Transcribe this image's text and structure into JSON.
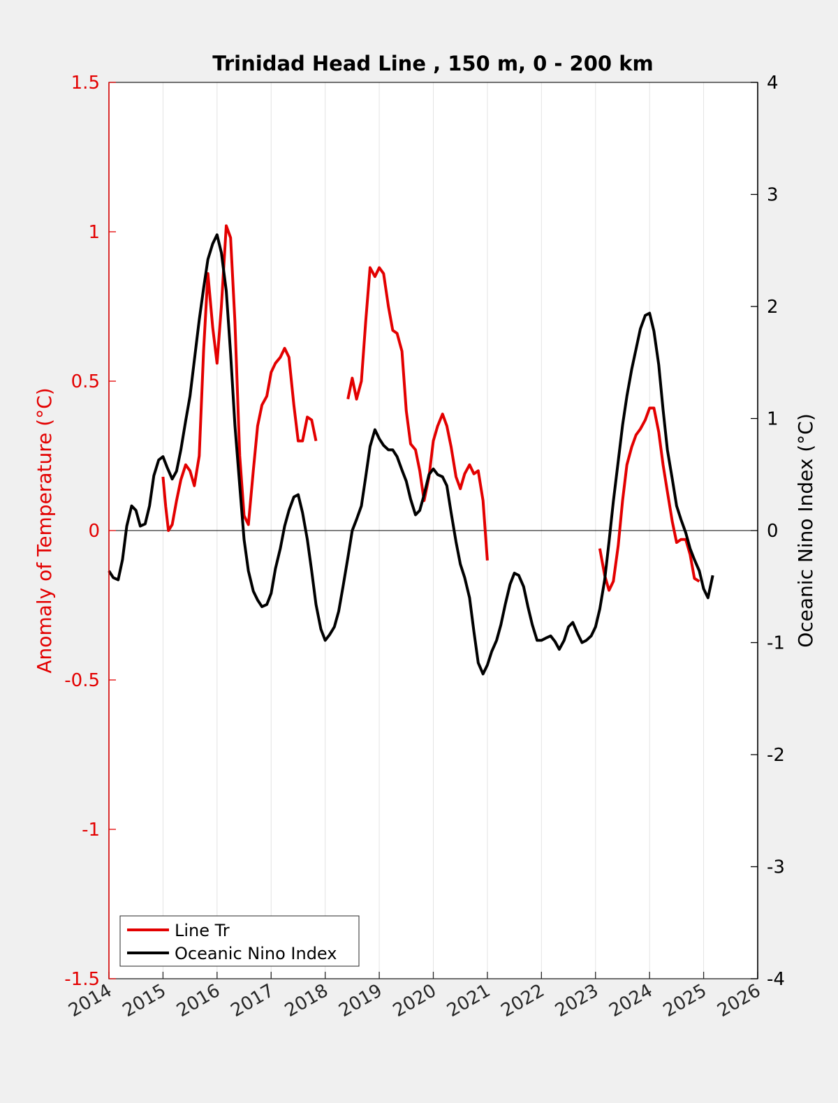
{
  "chart_data": {
    "type": "line",
    "title": "Trinidad Head Line , 150 m, 0 - 200 km",
    "xlabel": "",
    "ylabel_left": "Anomaly of Temperature (°C)",
    "ylabel_right": "Oceanic Nino Index (°C)",
    "xlim": [
      2014,
      2026
    ],
    "ylim_left": [
      -1.5,
      1.5
    ],
    "ylim_right": [
      -4,
      4
    ],
    "x_ticks": [
      "2014",
      "2015",
      "2016",
      "2017",
      "2018",
      "2019",
      "2020",
      "2021",
      "2022",
      "2023",
      "2024",
      "2025",
      "2026"
    ],
    "y_ticks_left": [
      "-1.5",
      "-1",
      "-0.5",
      "0",
      "0.5",
      "1",
      "1.5"
    ],
    "y_ticks_right": [
      "-4",
      "-3",
      "-2",
      "-1",
      "0",
      "1",
      "2",
      "3",
      "4"
    ],
    "grid": "vertical",
    "zero_line": true,
    "legend_position": "bottom-left",
    "colors": {
      "line_tr": "#e30000",
      "oni": "#000000",
      "left_axis": "#e30000",
      "right_axis": "#000000"
    },
    "series": [
      {
        "name": "Line Tr",
        "axis": "left",
        "segments": [
          [
            [
              2015.0,
              0.18
            ],
            [
              2015.05,
              0.08
            ],
            [
              2015.1,
              0.0
            ],
            [
              2015.17,
              0.02
            ],
            [
              2015.25,
              0.1
            ],
            [
              2015.33,
              0.17
            ],
            [
              2015.42,
              0.22
            ],
            [
              2015.5,
              0.2
            ],
            [
              2015.58,
              0.15
            ],
            [
              2015.67,
              0.25
            ],
            [
              2015.75,
              0.6
            ],
            [
              2015.83,
              0.86
            ],
            [
              2015.92,
              0.68
            ],
            [
              2016.0,
              0.56
            ],
            [
              2016.08,
              0.75
            ],
            [
              2016.17,
              1.02
            ],
            [
              2016.25,
              0.98
            ],
            [
              2016.33,
              0.7
            ],
            [
              2016.42,
              0.25
            ],
            [
              2016.5,
              0.05
            ],
            [
              2016.58,
              0.02
            ],
            [
              2016.67,
              0.2
            ],
            [
              2016.75,
              0.35
            ],
            [
              2016.83,
              0.42
            ],
            [
              2016.92,
              0.45
            ],
            [
              2017.0,
              0.53
            ],
            [
              2017.08,
              0.56
            ],
            [
              2017.17,
              0.58
            ],
            [
              2017.25,
              0.61
            ],
            [
              2017.33,
              0.58
            ],
            [
              2017.42,
              0.42
            ],
            [
              2017.5,
              0.3
            ],
            [
              2017.58,
              0.3
            ],
            [
              2017.67,
              0.38
            ],
            [
              2017.75,
              0.37
            ],
            [
              2017.83,
              0.3
            ]
          ],
          [
            [
              2018.42,
              0.44
            ],
            [
              2018.5,
              0.51
            ],
            [
              2018.58,
              0.44
            ],
            [
              2018.67,
              0.5
            ],
            [
              2018.75,
              0.7
            ],
            [
              2018.83,
              0.88
            ],
            [
              2018.92,
              0.85
            ],
            [
              2019.0,
              0.88
            ],
            [
              2019.08,
              0.86
            ],
            [
              2019.17,
              0.75
            ],
            [
              2019.25,
              0.67
            ],
            [
              2019.33,
              0.66
            ],
            [
              2019.42,
              0.6
            ],
            [
              2019.5,
              0.4
            ],
            [
              2019.58,
              0.29
            ],
            [
              2019.67,
              0.27
            ],
            [
              2019.75,
              0.2
            ],
            [
              2019.83,
              0.1
            ],
            [
              2019.92,
              0.18
            ],
            [
              2020.0,
              0.3
            ],
            [
              2020.08,
              0.35
            ],
            [
              2020.17,
              0.39
            ],
            [
              2020.25,
              0.35
            ],
            [
              2020.33,
              0.28
            ],
            [
              2020.42,
              0.18
            ],
            [
              2020.5,
              0.14
            ],
            [
              2020.58,
              0.19
            ],
            [
              2020.67,
              0.22
            ],
            [
              2020.75,
              0.19
            ],
            [
              2020.83,
              0.2
            ],
            [
              2020.92,
              0.1
            ],
            [
              2021.0,
              -0.1
            ]
          ],
          [
            [
              2023.08,
              -0.06
            ],
            [
              2023.17,
              -0.15
            ],
            [
              2023.25,
              -0.2
            ],
            [
              2023.33,
              -0.17
            ],
            [
              2023.42,
              -0.05
            ],
            [
              2023.5,
              0.1
            ],
            [
              2023.58,
              0.22
            ],
            [
              2023.67,
              0.28
            ],
            [
              2023.75,
              0.32
            ],
            [
              2023.83,
              0.34
            ],
            [
              2023.92,
              0.37
            ],
            [
              2024.0,
              0.41
            ],
            [
              2024.08,
              0.41
            ],
            [
              2024.17,
              0.33
            ],
            [
              2024.25,
              0.22
            ],
            [
              2024.33,
              0.13
            ],
            [
              2024.42,
              0.03
            ],
            [
              2024.5,
              -0.04
            ],
            [
              2024.58,
              -0.03
            ],
            [
              2024.67,
              -0.03
            ],
            [
              2024.75,
              -0.08
            ],
            [
              2024.83,
              -0.16
            ],
            [
              2024.92,
              -0.17
            ]
          ]
        ]
      },
      {
        "name": "Oceanic Nino Index",
        "axis": "right",
        "segments": [
          [
            [
              2014.0,
              -0.36
            ],
            [
              2014.08,
              -0.42
            ],
            [
              2014.17,
              -0.44
            ],
            [
              2014.25,
              -0.26
            ],
            [
              2014.33,
              0.04
            ],
            [
              2014.42,
              0.22
            ],
            [
              2014.5,
              0.18
            ],
            [
              2014.58,
              0.04
            ],
            [
              2014.67,
              0.06
            ],
            [
              2014.75,
              0.22
            ],
            [
              2014.83,
              0.49
            ],
            [
              2014.92,
              0.63
            ],
            [
              2015.0,
              0.66
            ],
            [
              2015.08,
              0.56
            ],
            [
              2015.17,
              0.46
            ],
            [
              2015.25,
              0.53
            ],
            [
              2015.33,
              0.72
            ],
            [
              2015.42,
              0.98
            ],
            [
              2015.5,
              1.2
            ],
            [
              2015.58,
              1.52
            ],
            [
              2015.67,
              1.88
            ],
            [
              2015.75,
              2.16
            ],
            [
              2015.83,
              2.42
            ],
            [
              2015.92,
              2.56
            ],
            [
              2016.0,
              2.64
            ],
            [
              2016.08,
              2.48
            ],
            [
              2016.17,
              2.14
            ],
            [
              2016.25,
              1.58
            ],
            [
              2016.33,
              0.94
            ],
            [
              2016.42,
              0.4
            ],
            [
              2016.5,
              -0.08
            ],
            [
              2016.58,
              -0.36
            ],
            [
              2016.67,
              -0.54
            ],
            [
              2016.75,
              -0.62
            ],
            [
              2016.83,
              -0.68
            ],
            [
              2016.92,
              -0.66
            ],
            [
              2017.0,
              -0.56
            ],
            [
              2017.08,
              -0.34
            ],
            [
              2017.17,
              -0.16
            ],
            [
              2017.25,
              0.04
            ],
            [
              2017.33,
              0.18
            ],
            [
              2017.42,
              0.3
            ],
            [
              2017.5,
              0.32
            ],
            [
              2017.58,
              0.16
            ],
            [
              2017.67,
              -0.08
            ],
            [
              2017.75,
              -0.36
            ],
            [
              2017.83,
              -0.66
            ],
            [
              2017.92,
              -0.88
            ],
            [
              2018.0,
              -0.98
            ],
            [
              2018.08,
              -0.93
            ],
            [
              2018.17,
              -0.86
            ],
            [
              2018.25,
              -0.72
            ],
            [
              2018.33,
              -0.5
            ],
            [
              2018.42,
              -0.24
            ],
            [
              2018.5,
              0.0
            ],
            [
              2018.58,
              0.1
            ],
            [
              2018.67,
              0.22
            ],
            [
              2018.75,
              0.48
            ],
            [
              2018.83,
              0.75
            ],
            [
              2018.92,
              0.9
            ],
            [
              2019.0,
              0.82
            ],
            [
              2019.08,
              0.76
            ],
            [
              2019.17,
              0.72
            ],
            [
              2019.25,
              0.72
            ],
            [
              2019.33,
              0.66
            ],
            [
              2019.42,
              0.54
            ],
            [
              2019.5,
              0.44
            ],
            [
              2019.58,
              0.28
            ],
            [
              2019.67,
              0.14
            ],
            [
              2019.75,
              0.18
            ],
            [
              2019.83,
              0.32
            ],
            [
              2019.92,
              0.5
            ],
            [
              2020.0,
              0.55
            ],
            [
              2020.08,
              0.5
            ],
            [
              2020.17,
              0.48
            ],
            [
              2020.25,
              0.4
            ],
            [
              2020.33,
              0.16
            ],
            [
              2020.42,
              -0.1
            ],
            [
              2020.5,
              -0.3
            ],
            [
              2020.58,
              -0.42
            ],
            [
              2020.67,
              -0.6
            ],
            [
              2020.75,
              -0.9
            ],
            [
              2020.83,
              -1.18
            ],
            [
              2020.92,
              -1.28
            ],
            [
              2021.0,
              -1.2
            ],
            [
              2021.08,
              -1.08
            ],
            [
              2021.17,
              -0.98
            ],
            [
              2021.25,
              -0.84
            ],
            [
              2021.33,
              -0.66
            ],
            [
              2021.42,
              -0.48
            ],
            [
              2021.5,
              -0.38
            ],
            [
              2021.58,
              -0.4
            ],
            [
              2021.67,
              -0.5
            ],
            [
              2021.75,
              -0.68
            ],
            [
              2021.83,
              -0.84
            ],
            [
              2021.92,
              -0.98
            ],
            [
              2022.0,
              -0.98
            ],
            [
              2022.08,
              -0.96
            ],
            [
              2022.17,
              -0.94
            ],
            [
              2022.25,
              -0.99
            ],
            [
              2022.33,
              -1.06
            ],
            [
              2022.42,
              -0.98
            ],
            [
              2022.5,
              -0.86
            ],
            [
              2022.58,
              -0.82
            ],
            [
              2022.67,
              -0.92
            ],
            [
              2022.75,
              -1.0
            ],
            [
              2022.83,
              -0.98
            ],
            [
              2022.92,
              -0.94
            ],
            [
              2023.0,
              -0.86
            ],
            [
              2023.08,
              -0.7
            ],
            [
              2023.17,
              -0.44
            ],
            [
              2023.25,
              -0.1
            ],
            [
              2023.33,
              0.26
            ],
            [
              2023.42,
              0.62
            ],
            [
              2023.5,
              0.94
            ],
            [
              2023.58,
              1.2
            ],
            [
              2023.67,
              1.44
            ],
            [
              2023.75,
              1.62
            ],
            [
              2023.83,
              1.8
            ],
            [
              2023.92,
              1.92
            ],
            [
              2024.0,
              1.94
            ],
            [
              2024.08,
              1.78
            ],
            [
              2024.17,
              1.48
            ],
            [
              2024.25,
              1.08
            ],
            [
              2024.33,
              0.72
            ],
            [
              2024.42,
              0.46
            ],
            [
              2024.5,
              0.22
            ],
            [
              2024.58,
              0.1
            ],
            [
              2024.67,
              -0.02
            ],
            [
              2024.75,
              -0.16
            ],
            [
              2024.83,
              -0.26
            ],
            [
              2024.92,
              -0.36
            ],
            [
              2025.0,
              -0.52
            ],
            [
              2025.08,
              -0.6
            ],
            [
              2025.17,
              -0.4
            ]
          ]
        ]
      }
    ]
  }
}
